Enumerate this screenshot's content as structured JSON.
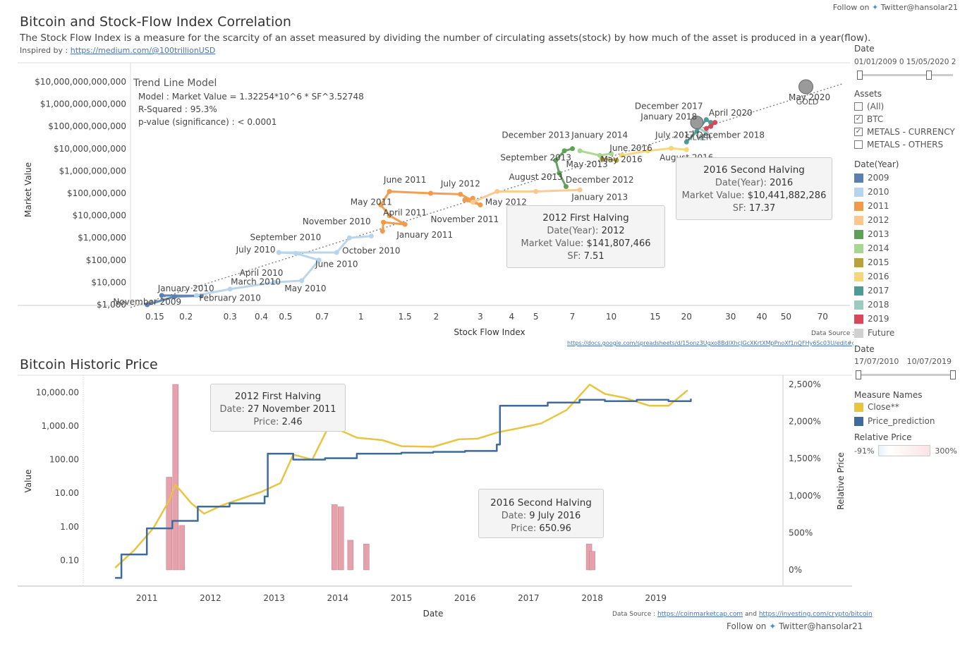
{
  "header": {
    "follow_label": "Follow on",
    "twitter_icon": "twitter-bird-icon",
    "twitter_handle": "Twitter@hansolar21",
    "title1": "Bitcoin and Stock-Flow Index Correlation",
    "subtitle1": "The Stock Flow Index is a measure for the scarcity of an asset measured by dividing the number of circulating assets(stock) by how much of the asset is produced in a year(flow).",
    "inspired_label": "Inspired by :",
    "inspired_link": "https://medium.com/@100trillionUSD",
    "title2": "Bitcoin Historic Price"
  },
  "trend": {
    "title": "Trend Line Model",
    "model": "Model : Market Value = 1.32254*10^6 * SF^3.52748",
    "r2": "R-Squared : 95.3%",
    "pvalue": "p-value (significance) : < 0.0001"
  },
  "tooltips": {
    "t2012a": {
      "title": "2012 First Halving",
      "l1k": "Date(Year): ",
      "l1v": "2012",
      "l2k": "Market Value: ",
      "l2v": "$141,807,466",
      "l3k": "SF: ",
      "l3v": "7.51"
    },
    "t2016a": {
      "title": "2016 Second Halving",
      "l1k": "Date(Year): ",
      "l1v": "2016",
      "l2k": "Market Value: ",
      "l2v": "$10,441,882,286",
      "l3k": "SF: ",
      "l3v": "17.37"
    },
    "t2012b": {
      "title": "2012 First Halving",
      "l1k": "Date: ",
      "l1v": "27 November 2011",
      "l2k": "Price: ",
      "l2v": "2.46"
    },
    "t2016b": {
      "title": "2016 Second Halving",
      "l1k": "Date: ",
      "l1v": "9 July 2016",
      "l2k": "Price: ",
      "l2v": "650.96"
    }
  },
  "sidebar": {
    "date_label": "Date",
    "date_range": "01/01/2009 0  15/05/2020 2",
    "assets_label": "Assets",
    "assets": [
      {
        "label": "(All)",
        "checked": false
      },
      {
        "label": "BTC",
        "checked": true
      },
      {
        "label": "METALS - CURRENCY",
        "checked": true
      },
      {
        "label": "METALS - OTHERS",
        "checked": false
      }
    ],
    "year_label": "Date(Year)",
    "years": [
      {
        "label": "2009",
        "color": "#5b7fae"
      },
      {
        "label": "2010",
        "color": "#b6d4ec"
      },
      {
        "label": "2011",
        "color": "#f09a4b"
      },
      {
        "label": "2012",
        "color": "#fac88f"
      },
      {
        "label": "2013",
        "color": "#5ea05a"
      },
      {
        "label": "2014",
        "color": "#a6d68f"
      },
      {
        "label": "2015",
        "color": "#b9a23b"
      },
      {
        "label": "2016",
        "color": "#f5d679"
      },
      {
        "label": "2017",
        "color": "#4f9a93"
      },
      {
        "label": "2018",
        "color": "#9cc9c0"
      },
      {
        "label": "2019",
        "color": "#d7485a"
      },
      {
        "label": "Future",
        "color": "#d0d0d0"
      }
    ],
    "date2_label": "Date",
    "date2_start": "17/07/2010",
    "date2_end": "10/07/2019",
    "measure_label": "Measure Names",
    "measures": [
      {
        "label": "Close**",
        "color": "#e8c440"
      },
      {
        "label": "Price_prediction",
        "color": "#3f6a9e"
      }
    ],
    "relative_label": "Relative Price",
    "rel_min": "-91%",
    "rel_max": "300%"
  },
  "source1": {
    "label": "Data Source :",
    "url": "https://docs.google.com/spreadsheets/d/15onz3Ugxo8BdIXhcJGcXKrtXMpPnoXf1nQFHy6Sc03U/edit#gid=90"
  },
  "source2": {
    "label": "Data Source :",
    "link1": "https://coinmarketcap.com",
    "and": "and",
    "link2": "https://investing.com/crypto/bitcoin"
  },
  "chart_data": [
    {
      "type": "scatter",
      "title": "Bitcoin and Stock-Flow Index Correlation",
      "xlabel": "Stock Flow Index",
      "ylabel": "Market Value",
      "x_scale": "log",
      "y_scale": "log",
      "x_ticks": [
        "0.15",
        "0.2",
        "0.3",
        "0.4",
        "0.5",
        "0.7",
        "1",
        "1.5",
        "2",
        "3",
        "4",
        "5",
        "7",
        "10",
        "15",
        "20",
        "30",
        "40",
        "50",
        "70"
      ],
      "y_ticks": [
        "$1,000",
        "$10,000",
        "$100,000",
        "$1,000,000",
        "$10,000,000",
        "$100,000,000",
        "$1,000,000,000",
        "$10,000,000,000",
        "$100,000,000,000",
        "$1,000,000,000,000",
        "$10,000,000,000,000"
      ],
      "trend": {
        "a": 1322540,
        "b": 3.52748
      },
      "series": [
        {
          "name": "2009",
          "points": [
            [
              0.14,
              1000
            ],
            [
              0.18,
              2300
            ],
            [
              0.23,
              2500
            ],
            [
              0.16,
              2600
            ]
          ]
        },
        {
          "name": "2010",
          "points": [
            [
              0.22,
              2600
            ],
            [
              0.3,
              5000
            ],
            [
              0.45,
              10000
            ],
            [
              0.58,
              12000
            ],
            [
              0.68,
              100000
            ],
            [
              0.55,
              200000
            ],
            [
              0.47,
              220000
            ],
            [
              0.8,
              220000
            ],
            [
              0.9,
              1000000
            ],
            [
              1.1,
              1200000
            ]
          ]
        },
        {
          "name": "2011",
          "points": [
            [
              1.22,
              2000000
            ],
            [
              1.23,
              5000000
            ],
            [
              1.5,
              4000000
            ],
            [
              1.3,
              10000000
            ],
            [
              1.2,
              30000000
            ],
            [
              1.3,
              120000000
            ],
            [
              1.9,
              100000000
            ],
            [
              2.5,
              90000000
            ],
            [
              3.0,
              30000000
            ],
            [
              2.6,
              50000000
            ],
            [
              2.8,
              60000000
            ]
          ]
        },
        {
          "name": "2012",
          "points": [
            [
              2.8,
              40000000
            ],
            [
              3.5,
              120000000
            ],
            [
              5,
              120000000
            ],
            [
              7.5,
              141807466
            ]
          ]
        },
        {
          "name": "2013",
          "points": [
            [
              6.6,
              200000000
            ],
            [
              6.2,
              800000000
            ],
            [
              6.0,
              3000000000
            ],
            [
              6.5,
              8000000000
            ],
            [
              7,
              10000000000
            ]
          ]
        },
        {
          "name": "2014",
          "points": [
            [
              7.5,
              8000000000
            ],
            [
              9,
              5000000000
            ],
            [
              10,
              6000000000
            ]
          ]
        },
        {
          "name": "2015",
          "points": [
            [
              9.2,
              3500000000
            ],
            [
              10.5,
              3000000000
            ]
          ]
        },
        {
          "name": "2016",
          "points": [
            [
              11,
              5000000000
            ],
            [
              14,
              8000000000
            ],
            [
              17.37,
              10441882286
            ],
            [
              20,
              9000000000
            ]
          ]
        },
        {
          "name": "2017",
          "points": [
            [
              20,
              20000000000
            ],
            [
              22,
              60000000000
            ],
            [
              24,
              200000000000
            ],
            [
              25,
              150000000000
            ]
          ]
        },
        {
          "name": "2018",
          "points": [
            [
              22,
              100000000000
            ],
            [
              24,
              50000000000
            ],
            [
              23,
              30000000000
            ]
          ]
        },
        {
          "name": "2019",
          "points": [
            [
              24,
              80000000000
            ],
            [
              26,
              150000000000
            ],
            [
              25,
              100000000000
            ]
          ]
        }
      ],
      "metals": [
        {
          "name": "GOLD",
          "x": 60,
          "y": 6000000000000
        },
        {
          "name": "SILVER",
          "x": 22,
          "y": 150000000000
        }
      ],
      "annotations": [
        {
          "text": "November 2009",
          "x": 0.14,
          "y": 1000
        },
        {
          "text": "January 2010",
          "x": 0.2,
          "y": 4000
        },
        {
          "text": "February 2010",
          "x": 0.3,
          "y": 1500
        },
        {
          "text": "March 2010",
          "x": 0.38,
          "y": 8000
        },
        {
          "text": "April 2010",
          "x": 0.4,
          "y": 20000
        },
        {
          "text": "May 2010",
          "x": 0.6,
          "y": 4000
        },
        {
          "text": "June 2010",
          "x": 0.8,
          "y": 50000
        },
        {
          "text": "July 2010",
          "x": 0.38,
          "y": 220000
        },
        {
          "text": "September 2010",
          "x": 0.5,
          "y": 800000
        },
        {
          "text": "October 2010",
          "x": 1.1,
          "y": 200000
        },
        {
          "text": "November 2010",
          "x": 0.8,
          "y": 4000000
        },
        {
          "text": "January 2011",
          "x": 1.8,
          "y": 1000000
        },
        {
          "text": "April 2011",
          "x": 1.5,
          "y": 10000000
        },
        {
          "text": "May 2011",
          "x": 1.1,
          "y": 30000000
        },
        {
          "text": "June 2011",
          "x": 1.5,
          "y": 300000000
        },
        {
          "text": "July 2012",
          "x": 2.5,
          "y": 200000000
        },
        {
          "text": "May 2012",
          "x": 3.8,
          "y": 30000000
        },
        {
          "text": "November 2011",
          "x": 2.6,
          "y": 5000000
        },
        {
          "text": "August 2013",
          "x": 5,
          "y": 400000000
        },
        {
          "text": "December 2012",
          "x": 9,
          "y": 300000000
        },
        {
          "text": "January 2013",
          "x": 9,
          "y": 50000000
        },
        {
          "text": "September 2013",
          "x": 5,
          "y": 3000000000
        },
        {
          "text": "December 2013",
          "x": 5,
          "y": 30000000000
        },
        {
          "text": "January 2014",
          "x": 9,
          "y": 30000000000
        },
        {
          "text": "May 2013",
          "x": 8,
          "y": 1500000000
        },
        {
          "text": "June 2016",
          "x": 12,
          "y": 8000000000
        },
        {
          "text": "May 2016",
          "x": 11,
          "y": 2500000000
        },
        {
          "text": "July 2017",
          "x": 18,
          "y": 30000000000
        },
        {
          "text": "August 2016",
          "x": 20,
          "y": 3000000000
        },
        {
          "text": "December 2017",
          "x": 17,
          "y": 600000000000
        },
        {
          "text": "January 2018",
          "x": 17,
          "y": 200000000000
        },
        {
          "text": "April 2020",
          "x": 30,
          "y": 300000000000
        },
        {
          "text": "December 2018",
          "x": 30,
          "y": 30000000000
        },
        {
          "text": "May 2020",
          "x": 62,
          "y": 1500000000000
        }
      ]
    },
    {
      "type": "line",
      "title": "Bitcoin Historic Price",
      "xlabel": "Date",
      "ylabel": "Value",
      "y2label": "Relative Price",
      "y_scale": "log",
      "x_ticks": [
        "2011",
        "2012",
        "2013",
        "2014",
        "2015",
        "2016",
        "2017",
        "2018",
        "2019"
      ],
      "y_ticks": [
        "0.10",
        "1.00",
        "10.00",
        "100.00",
        "1,000.00",
        "10,000.00"
      ],
      "y2_ticks": [
        "0%",
        "500%",
        "1,000%",
        "1,500%",
        "2,000%",
        "2,500%"
      ],
      "series": [
        {
          "name": "Close**",
          "points": [
            [
              2010.5,
              0.06
            ],
            [
              2010.8,
              0.2
            ],
            [
              2011.1,
              0.9
            ],
            [
              2011.35,
              6
            ],
            [
              2011.45,
              18
            ],
            [
              2011.7,
              5
            ],
            [
              2011.9,
              2.46
            ],
            [
              2012.2,
              4.5
            ],
            [
              2012.5,
              7
            ],
            [
              2012.8,
              11
            ],
            [
              2013.1,
              20
            ],
            [
              2013.3,
              140
            ],
            [
              2013.6,
              100
            ],
            [
              2013.85,
              900
            ],
            [
              2014.0,
              800
            ],
            [
              2014.3,
              450
            ],
            [
              2014.7,
              380
            ],
            [
              2015.0,
              250
            ],
            [
              2015.5,
              240
            ],
            [
              2015.9,
              400
            ],
            [
              2016.2,
              420
            ],
            [
              2016.52,
              650.96
            ],
            [
              2016.9,
              900
            ],
            [
              2017.2,
              1200
            ],
            [
              2017.6,
              3000
            ],
            [
              2017.96,
              17000
            ],
            [
              2018.2,
              9000
            ],
            [
              2018.5,
              7000
            ],
            [
              2018.9,
              4000
            ],
            [
              2019.2,
              4000
            ],
            [
              2019.5,
              11500
            ]
          ]
        },
        {
          "name": "Price_prediction",
          "points": [
            [
              2010.5,
              0.03
            ],
            [
              2010.6,
              0.15
            ],
            [
              2011.0,
              0.9
            ],
            [
              2011.4,
              1.5
            ],
            [
              2011.8,
              4
            ],
            [
              2012.3,
              5
            ],
            [
              2012.85,
              8
            ],
            [
              2012.9,
              150
            ],
            [
              2013.3,
              100
            ],
            [
              2013.8,
              110
            ],
            [
              2014.3,
              150
            ],
            [
              2015.0,
              160
            ],
            [
              2015.5,
              170
            ],
            [
              2016.0,
              180
            ],
            [
              2016.5,
              280
            ],
            [
              2016.55,
              4000
            ],
            [
              2017.3,
              5000
            ],
            [
              2017.8,
              6000
            ],
            [
              2018.2,
              5500
            ],
            [
              2018.7,
              6000
            ],
            [
              2019.2,
              5500
            ],
            [
              2019.55,
              6500
            ]
          ]
        }
      ],
      "relative_bars": [
        {
          "x": 2011.45,
          "value": 2500
        },
        {
          "x": 2011.35,
          "value": 1250
        },
        {
          "x": 2011.55,
          "value": 600
        },
        {
          "x": 2013.95,
          "value": 880
        },
        {
          "x": 2014.05,
          "value": 850
        },
        {
          "x": 2014.2,
          "value": 400
        },
        {
          "x": 2014.45,
          "value": 350
        },
        {
          "x": 2017.95,
          "value": 350
        },
        {
          "x": 2018.0,
          "value": 250
        }
      ]
    }
  ]
}
